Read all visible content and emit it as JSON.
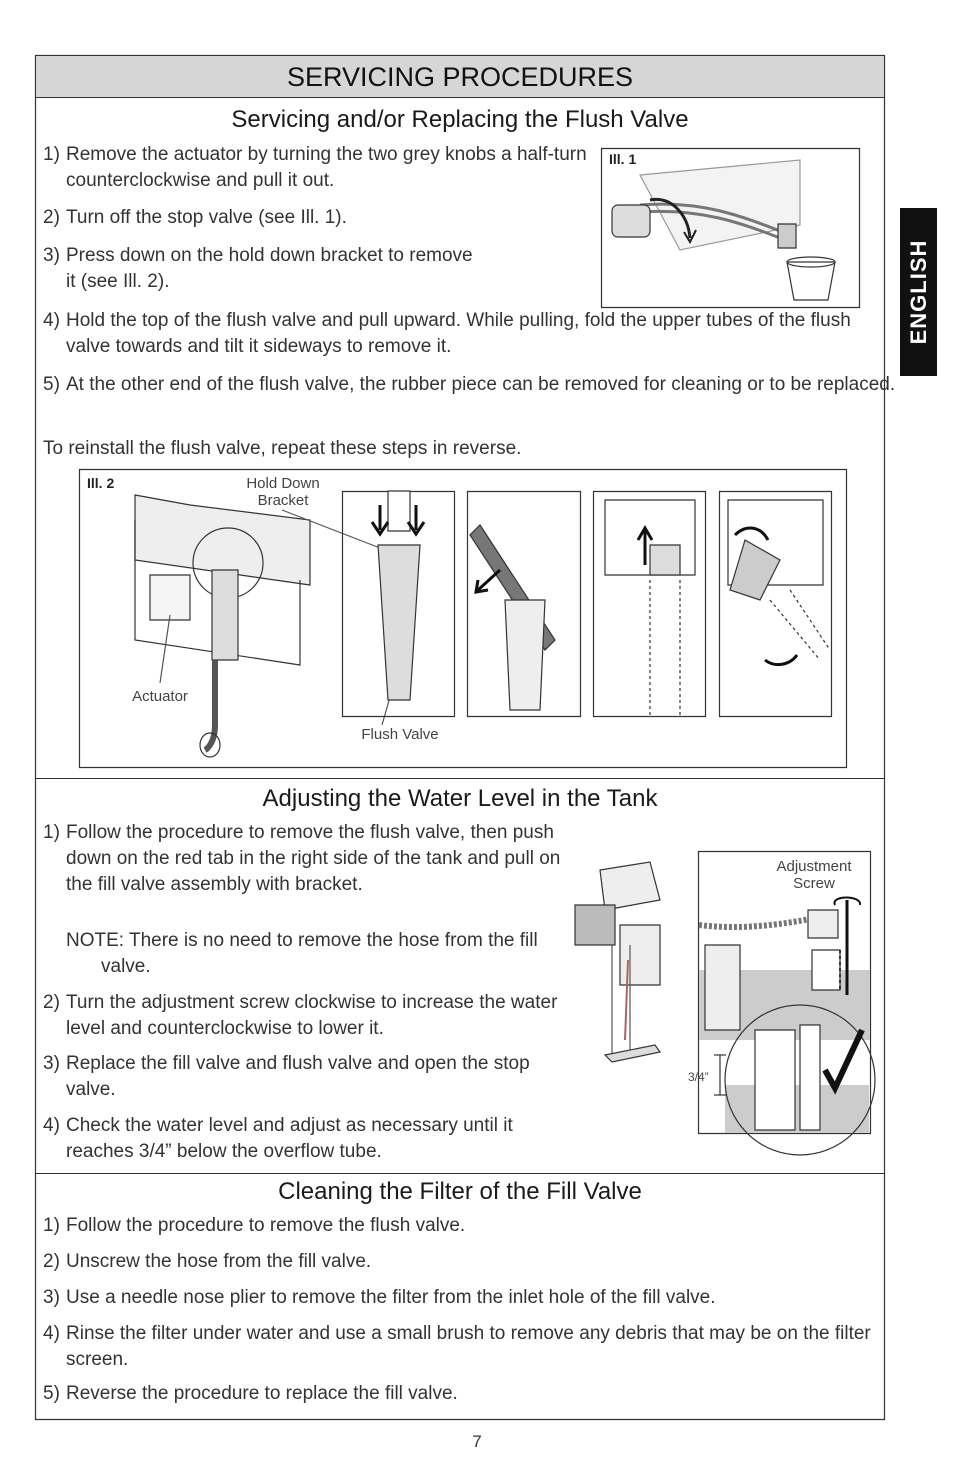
{
  "header": {
    "title": "SERVICING PROCEDURES"
  },
  "side_tab": "ENGLISH",
  "sections": [
    {
      "heading": "Servicing and/or Replacing the Flush Valve",
      "steps": [
        {
          "number": "1)",
          "text": "Remove the actuator by turning the two grey knobs a half-turn counterclockwise and pull it out."
        },
        {
          "number": "2)",
          "text": "Turn off the stop valve (see Ill. 1)."
        },
        {
          "number": "3)",
          "text": "Press down on the hold down bracket to remove it (see Ill. 2)."
        },
        {
          "number": "4)",
          "text": "Hold the top of the flush valve and pull upward. While pulling, fold the upper tubes of the flush valve towards and tilt it sideways to remove it."
        },
        {
          "number": "5)",
          "text": "At the other end of the flush valve, the rubber piece can be removed for cleaning or to be replaced."
        }
      ],
      "closing": "To reinstall the flush valve, repeat these steps in reverse.",
      "illustrations": [
        {
          "label": "Ill. 1"
        },
        {
          "label": "Ill. 2",
          "callouts": [
            "Hold Down Bracket",
            "Actuator",
            "Flush Valve"
          ]
        }
      ]
    },
    {
      "heading": "Adjusting the Water Level in the Tank",
      "steps": [
        {
          "number": "1)",
          "text": "Follow the procedure to remove the flush valve, then push down on the red tab in the right side of the tank and pull on the fill valve assembly with bracket.",
          "note": "NOTE: There is no need to remove the hose from the fill valve."
        },
        {
          "number": "2)",
          "text": "Turn the adjustment screw clockwise to increase the water level and counterclockwise to lower it."
        },
        {
          "number": "3)",
          "text": "Replace the fill valve and flush valve and open the stop valve."
        },
        {
          "number": "4)",
          "text": "Check the water level and adjust as necessary until it reaches 3/4” below the overflow tube."
        }
      ],
      "illustrations": [
        {
          "callouts": [
            "Adjustment Screw",
            "3/4”"
          ]
        }
      ]
    },
    {
      "heading": "Cleaning the Filter of the Fill Valve",
      "steps": [
        {
          "number": "1)",
          "text": "Follow the procedure to remove the flush valve."
        },
        {
          "number": "2)",
          "text": "Unscrew the hose from the fill valve."
        },
        {
          "number": "3)",
          "text": "Use a needle nose plier to remove the filter from the inlet hole of the fill valve."
        },
        {
          "number": "4)",
          "text": "Rinse the filter under water and use a small brush to remove any debris that may be on the filter screen."
        },
        {
          "number": "5)",
          "text": "Reverse the procedure to replace the fill valve."
        }
      ]
    }
  ],
  "page_number": "7"
}
